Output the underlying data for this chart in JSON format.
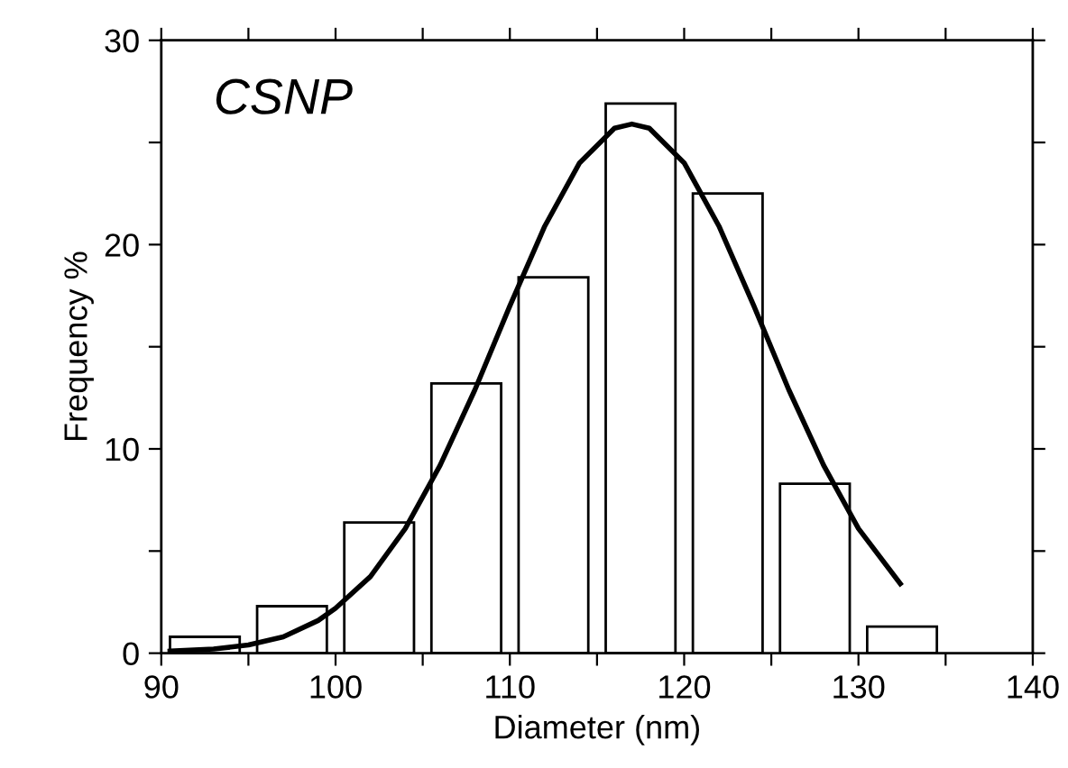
{
  "chart_data": {
    "type": "histogram",
    "xlabel": "Diameter (nm)",
    "ylabel": "Frequency %",
    "annotations": [
      "CSNP"
    ],
    "bins": [
      90,
      95,
      100,
      105,
      110,
      115,
      120,
      125,
      130,
      135
    ],
    "values": [
      0.8,
      2.3,
      6.4,
      13.2,
      18.4,
      26.9,
      22.5,
      8.3,
      1.3
    ],
    "color": "#000000",
    "series": [
      {
        "type": "line",
        "color": "#000000",
        "x": [
          90.5,
          93,
          95,
          97,
          99,
          100,
          102,
          104,
          106,
          108,
          110,
          112,
          114,
          116,
          117,
          118,
          120,
          122,
          124,
          126,
          128,
          130,
          132.4
        ],
        "values": [
          0.1,
          0.2,
          0.4,
          0.8,
          1.6,
          2.2,
          3.75,
          6.1,
          9.2,
          12.9,
          17.0,
          20.9,
          24.0,
          25.7,
          25.9,
          25.7,
          24.0,
          20.9,
          17.0,
          12.9,
          9.2,
          6.1,
          3.4
        ]
      }
    ],
    "xlim": [
      90,
      140
    ],
    "xticks": [
      90,
      {
        "value": 95,
        "label": null
      },
      100,
      {
        "value": 105,
        "label": null
      },
      110,
      {
        "value": 115,
        "label": null
      },
      120,
      {
        "value": 125,
        "label": null
      },
      130,
      {
        "value": 135,
        "label": null
      },
      140
    ],
    "ylim": [
      0,
      30
    ],
    "yticks": [
      0,
      {
        "value": 5,
        "label": null
      },
      10,
      {
        "value": 15,
        "label": null
      },
      20,
      {
        "value": 25,
        "label": null
      },
      30
    ],
    "grid": false,
    "legend": false,
    "marker": "none",
    "line_style": "solid"
  }
}
